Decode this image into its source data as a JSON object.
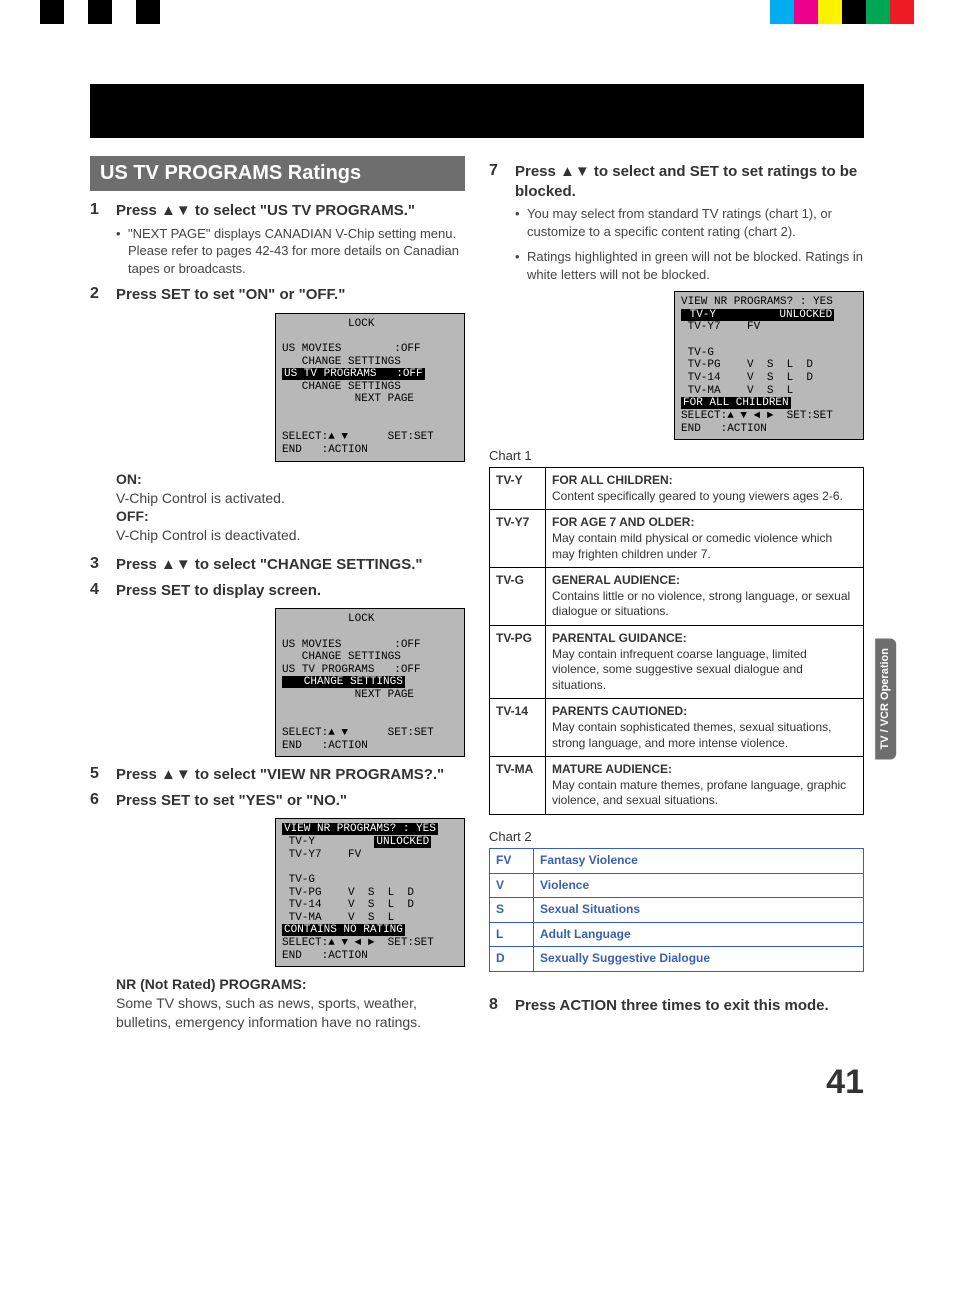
{
  "page_number": "41",
  "side_tab": "TV / VCR\nOperation",
  "color_bars_left": [
    "#000000",
    "#ffffff",
    "#000000",
    "#ffffff",
    "#000000"
  ],
  "color_bars_right": [
    "#00aeef",
    "#ec008c",
    "#fff200",
    "#000000",
    "#00a651",
    "#ed1c24"
  ],
  "section_title": "US TV PROGRAMS Ratings",
  "left": {
    "steps": [
      {
        "n": "1",
        "t": "Press ▲▼ to select \"US TV PROGRAMS.\""
      },
      {
        "n": "2",
        "t": "Press SET to set \"ON\" or \"OFF.\""
      },
      {
        "n": "3",
        "t": "Press ▲▼ to select \"CHANGE SETTINGS.\""
      },
      {
        "n": "4",
        "t": "Press SET to display screen."
      },
      {
        "n": "5",
        "t": "Press ▲▼ to select \"VIEW NR PROGRAMS?.\""
      },
      {
        "n": "6",
        "t": "Press SET to set \"YES\" or \"NO.\""
      }
    ],
    "bullet1": "\"NEXT PAGE\" displays CANADIAN V-Chip setting menu. Please refer to pages 42-43 for more details on Canadian tapes or broadcasts.",
    "on_label": "ON:",
    "on_text": "V-Chip Control is activated.",
    "off_label": "OFF:",
    "off_text": "V-Chip Control is deactivated.",
    "nr_title": "NR (Not Rated) PROGRAMS:",
    "nr_text": "Some TV shows, such as news, sports, weather, bulletins, emergency information have no ratings.",
    "osd1": {
      "title": "          LOCK",
      "l1": "US MOVIES        :OFF",
      "l2": "   CHANGE SETTINGS",
      "hl": "US TV PROGRAMS   :OFF",
      "l3": "   CHANGE SETTINGS",
      "l4": "           NEXT PAGE",
      "foot1": "SELECT:▲ ▼      SET:SET",
      "foot2": "END   :ACTION"
    },
    "osd2": {
      "title": "          LOCK",
      "l1": "US MOVIES        :OFF",
      "l2": "   CHANGE SETTINGS",
      "l3": "US TV PROGRAMS   :OFF",
      "hl": "   CHANGE SETTINGS",
      "l4": "           NEXT PAGE",
      "foot1": "SELECT:▲ ▼      SET:SET",
      "foot2": "END   :ACTION"
    },
    "osd3": {
      "hl0": "VIEW NR PROGRAMS? : YES",
      "l1": " TV-Y         ",
      "unl": "UNLOCKED",
      "l2": " TV-Y7    FV",
      "l3": " TV-G",
      "l4": " TV-PG    V  S  L  D",
      "l5": " TV-14    V  S  L  D",
      "l6": " TV-MA    V  S  L",
      "hl": "CONTAINS NO RATING",
      "foot1": "SELECT:▲ ▼ ◄ ►  SET:SET",
      "foot2": "END   :ACTION"
    }
  },
  "right": {
    "steps": [
      {
        "n": "7",
        "t": "Press ▲▼ to select and SET to set ratings to be blocked."
      },
      {
        "n": "8",
        "t": "Press ACTION three times to exit this mode."
      }
    ],
    "bullets7": [
      "You may select from standard TV ratings (chart 1), or customize to a specific content rating  (chart 2).",
      "Ratings highlighted in green will not be blocked. Ratings in white letters will not be blocked."
    ],
    "osd4": {
      "l0": "VIEW NR PROGRAMS? : YES",
      "hl1": " TV-Y         ",
      "unl": "UNLOCKED",
      "l2": " TV-Y7    FV",
      "l3": " TV-G",
      "l4": " TV-PG    V  S  L  D",
      "l5": " TV-14    V  S  L  D",
      "l6": " TV-MA    V  S  L",
      "hl": "FOR ALL CHILDREN",
      "foot1": "SELECT:▲ ▼ ◄ ►  SET:SET",
      "foot2": "END   :ACTION"
    },
    "chart1_label": "Chart 1",
    "chart2_label": "Chart 2",
    "chart1": [
      {
        "code": "TV-Y",
        "title": "FOR ALL CHILDREN:",
        "desc": "Content specifically geared to young viewers ages 2-6."
      },
      {
        "code": "TV-Y7",
        "title": "FOR AGE 7 AND OLDER:",
        "desc": "May contain mild physical or comedic violence which may frighten children under 7."
      },
      {
        "code": "TV-G",
        "title": "GENERAL AUDIENCE:",
        "desc": "Contains little or no violence, strong language, or sexual dialogue or situations."
      },
      {
        "code": "TV-PG",
        "title": "PARENTAL GUIDANCE:",
        "desc": "May contain infrequent coarse language, limited violence, some suggestive sexual dialogue and situations."
      },
      {
        "code": "TV-14",
        "title": "PARENTS CAUTIONED:",
        "desc": "May contain sophisticated themes, sexual situations, strong language, and more intense violence."
      },
      {
        "code": "TV-MA",
        "title": "MATURE AUDIENCE:",
        "desc": "May contain mature themes, profane language, graphic violence, and sexual situations."
      }
    ],
    "chart2": [
      {
        "code": "FV",
        "desc": "Fantasy Violence"
      },
      {
        "code": "V",
        "desc": "Violence"
      },
      {
        "code": "S",
        "desc": "Sexual Situations"
      },
      {
        "code": "L",
        "desc": "Adult Language"
      },
      {
        "code": "D",
        "desc": "Sexually Suggestive Dialogue"
      }
    ]
  }
}
